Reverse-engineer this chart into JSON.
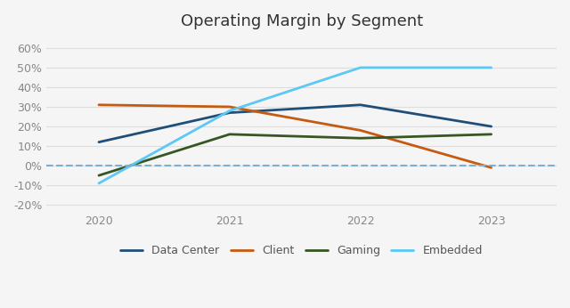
{
  "title": "Operating Margin by Segment",
  "years": [
    2020,
    2021,
    2022,
    2023
  ],
  "series": {
    "Data Center": {
      "values": [
        12,
        27,
        31,
        20
      ],
      "color": "#1f4e79",
      "linewidth": 2.0
    },
    "Client": {
      "values": [
        31,
        30,
        18,
        -1
      ],
      "color": "#c55a11",
      "linewidth": 2.0
    },
    "Gaming": {
      "values": [
        -5,
        16,
        14,
        16
      ],
      "color": "#375623",
      "linewidth": 2.0
    },
    "Embedded": {
      "values": [
        -9,
        28,
        50,
        50
      ],
      "color": "#5bc8f5",
      "linewidth": 2.0
    }
  },
  "ylim": [
    -23,
    65
  ],
  "yticks": [
    -20,
    -10,
    0,
    10,
    20,
    30,
    40,
    50,
    60
  ],
  "ytick_labels": [
    "-20%",
    "-10%",
    "0%",
    "10%",
    "20%",
    "30%",
    "40%",
    "50%",
    "60%"
  ],
  "xlim": [
    2019.6,
    2023.5
  ],
  "background_color": "#f5f5f5",
  "grid_color": "#dddddd",
  "zero_line_color": "#7bafd4",
  "title_fontsize": 13,
  "tick_fontsize": 9,
  "legend_fontsize": 9,
  "legend_order": [
    "Data Center",
    "Client",
    "Gaming",
    "Embedded"
  ]
}
